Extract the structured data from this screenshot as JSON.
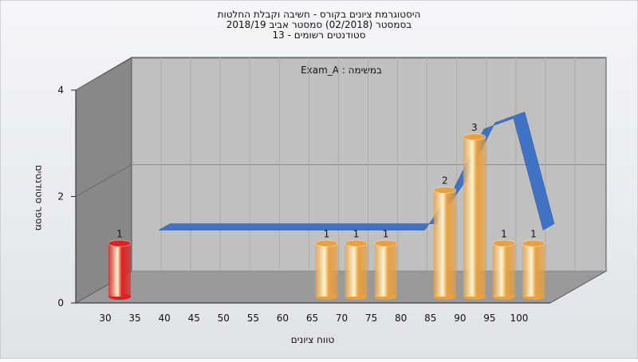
{
  "chart_data": {
    "type": "bar3d",
    "title_lines": [
      "היסטוגרמת ציונים בקורס - חשיבה וקבלת החלטות",
      "בסמסטר  (02/2018)  סמסטר אביב 2018/19",
      "סטודנטים רשומים - 13"
    ],
    "annotation": "Exam_A : במשימה",
    "x_label": "טווח ציונים",
    "y_label": "מספר סטודנטים",
    "categories": [
      "30",
      "35",
      "40",
      "45",
      "50",
      "55",
      "60",
      "65",
      "70",
      "75",
      "80",
      "85",
      "90",
      "95",
      "100"
    ],
    "series": [
      {
        "values": [
          1,
          0,
          0,
          0,
          0,
          0,
          0,
          1,
          1,
          1,
          0,
          2,
          3,
          1,
          1
        ],
        "colors": [
          "#e02020",
          "#e8a040",
          "#e8a040",
          "#e8a040",
          "#e8a040",
          "#e8a040",
          "#e8a040",
          "#e8a040",
          "#e8a040",
          "#e8a040",
          "#e8a040",
          "#e8a040",
          "#e8a040",
          "#e8a040",
          "#e8a040"
        ]
      },
      {
        "type": "line",
        "color": "#3a6fc4",
        "values": [
          null,
          1.1,
          1.1,
          1.1,
          1.1,
          1.1,
          1.1,
          1.1,
          1.1,
          1.1,
          1.1,
          1.9,
          3.0,
          3.2,
          1.1
        ]
      }
    ],
    "ylim": [
      0,
      4
    ],
    "yticks": [
      0,
      2,
      4
    ]
  }
}
